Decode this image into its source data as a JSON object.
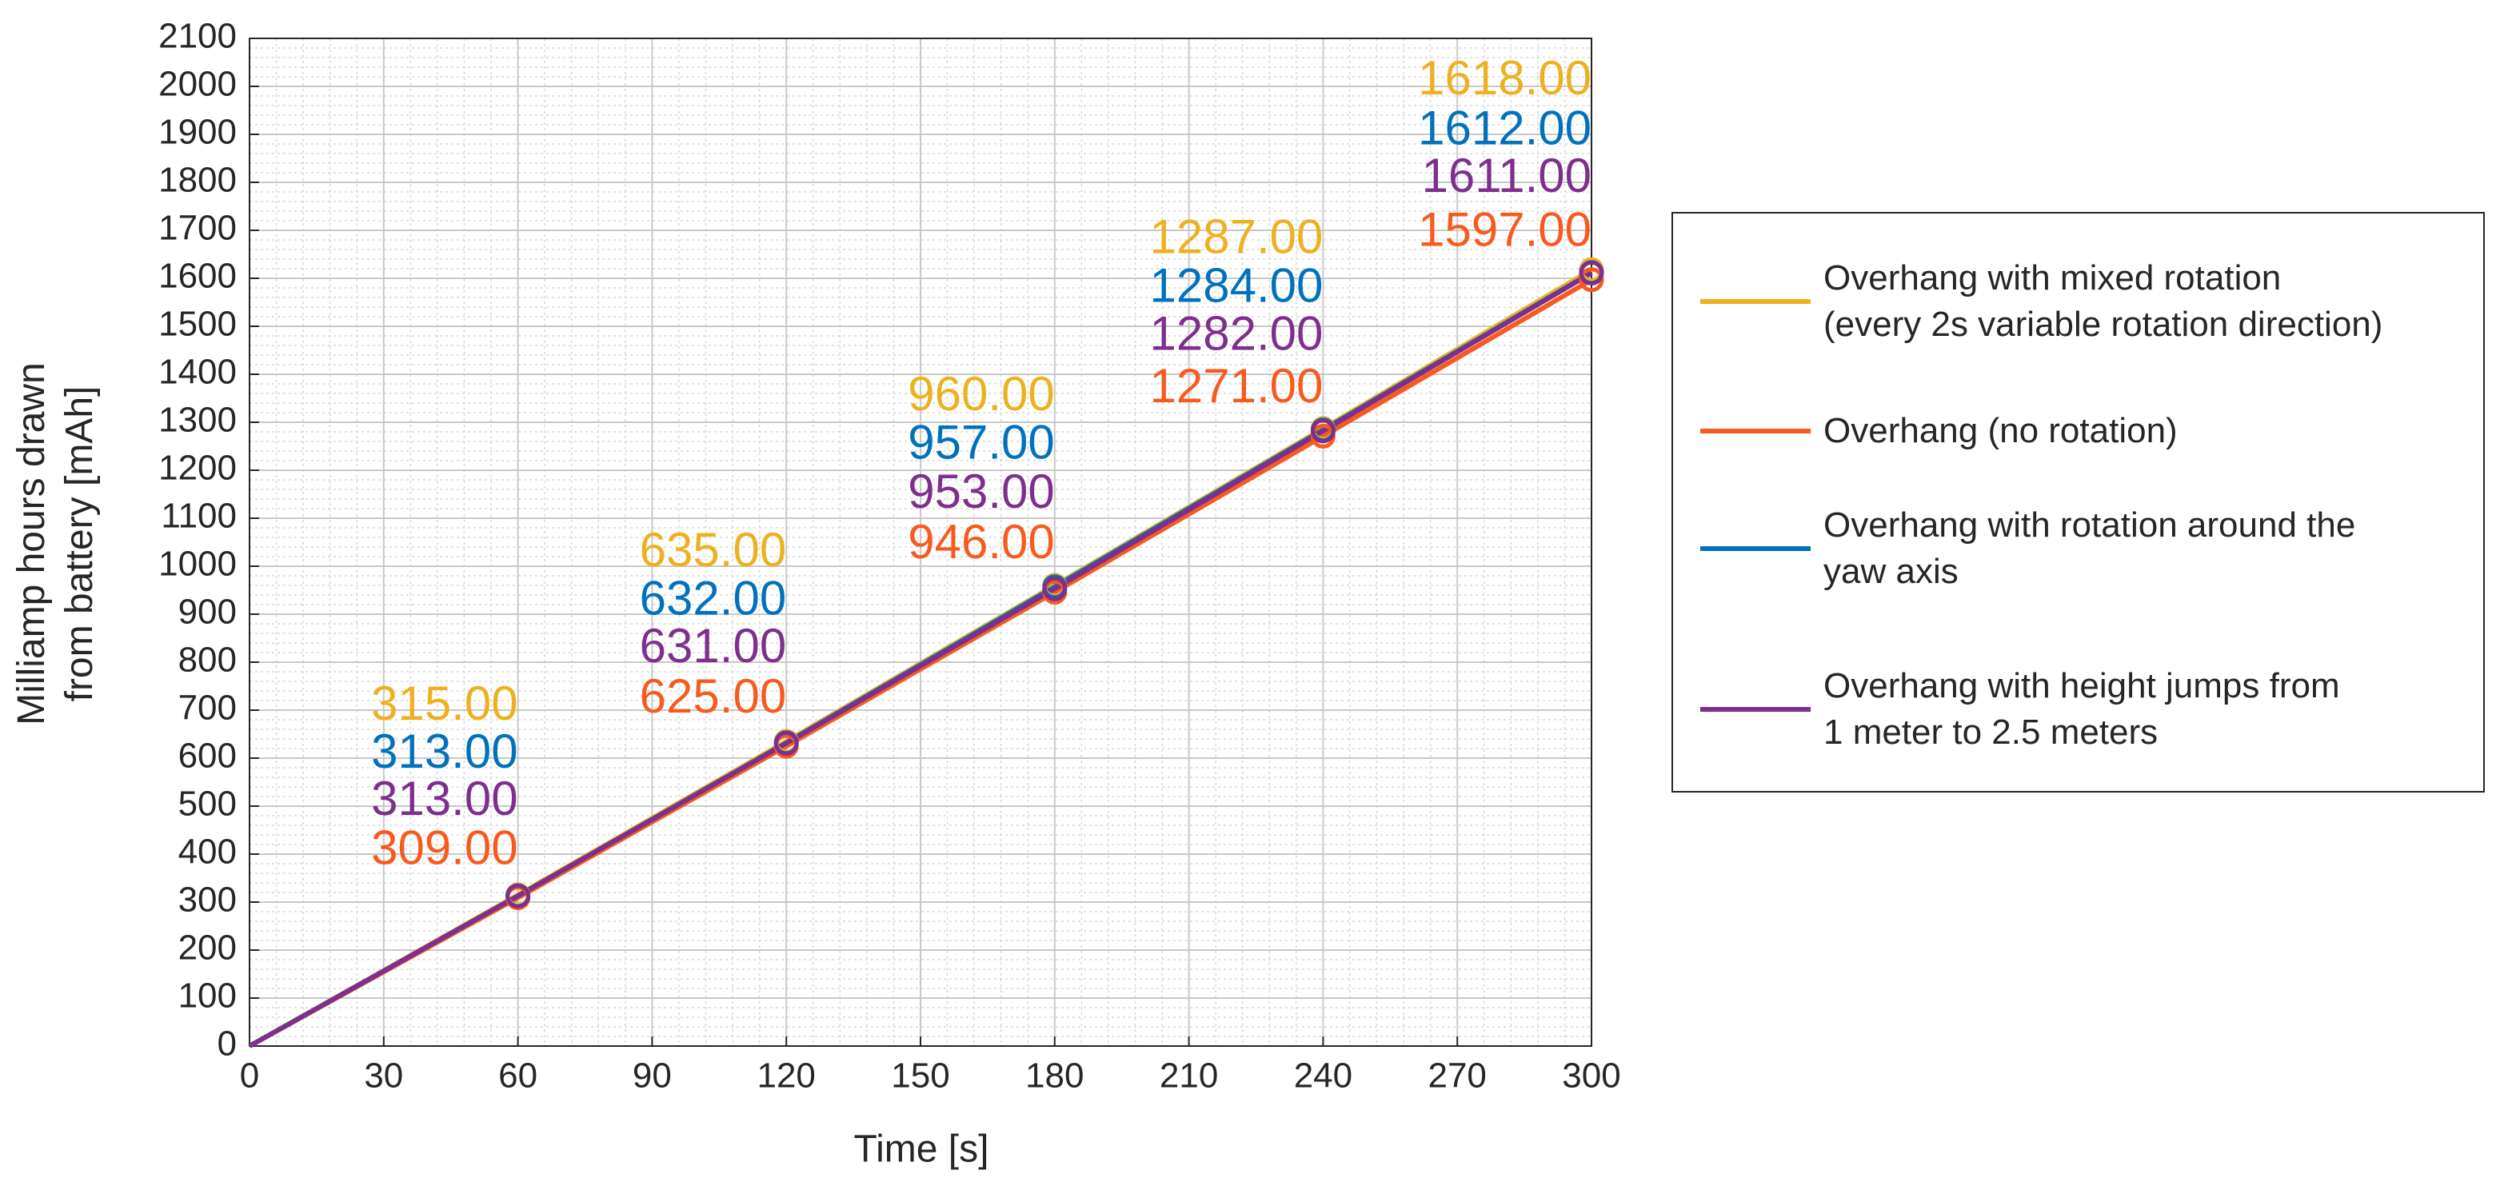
{
  "chart_data": {
    "type": "line",
    "xlabel": "Time [s]",
    "ylabel": "Milliamp hours drawn\nfrom battery [mAh]",
    "x": [
      0,
      60,
      120,
      180,
      240,
      300
    ],
    "xlim": [
      0,
      300
    ],
    "xticks": [
      0,
      30,
      60,
      90,
      120,
      150,
      180,
      210,
      240,
      270,
      300
    ],
    "ylim": [
      0,
      2100
    ],
    "yticks": [
      0,
      100,
      200,
      300,
      400,
      500,
      600,
      700,
      800,
      900,
      1000,
      1100,
      1200,
      1300,
      1400,
      1500,
      1600,
      1700,
      1800,
      1900,
      2000,
      2100
    ],
    "grid": true,
    "minor_grid": true,
    "legend": "outside right",
    "series": [
      {
        "name": "Overhang with mixed rotation\n(every 2s variable rotation direction)",
        "color": "#EDB120",
        "values": [
          0,
          315,
          635,
          960,
          1287,
          1618
        ],
        "value_labels": [
          null,
          "315.00",
          "635.00",
          "960.00",
          "1287.00",
          "1618.00"
        ]
      },
      {
        "name": "Overhang (no rotation)",
        "color": "#F85A1E",
        "values": [
          0,
          309,
          625,
          946,
          1271,
          1597
        ],
        "value_labels": [
          null,
          "309.00",
          "625.00",
          "946.00",
          "1271.00",
          "1597.00"
        ]
      },
      {
        "name": "Overhang with rotation around the\nyaw axis",
        "color": "#0072BD",
        "values": [
          0,
          313,
          632,
          957,
          1284,
          1612
        ],
        "value_labels": [
          null,
          "313.00",
          "632.00",
          "957.00",
          "1284.00",
          "1612.00"
        ]
      },
      {
        "name": "Overhang with height jumps from\n1 meter to 2.5 meters",
        "color": "#7E2F8E",
        "values": [
          0,
          313,
          631,
          953,
          1282,
          1611
        ],
        "value_labels": [
          null,
          "313.00",
          "631.00",
          "953.00",
          "1282.00",
          "1611.00"
        ]
      }
    ]
  }
}
